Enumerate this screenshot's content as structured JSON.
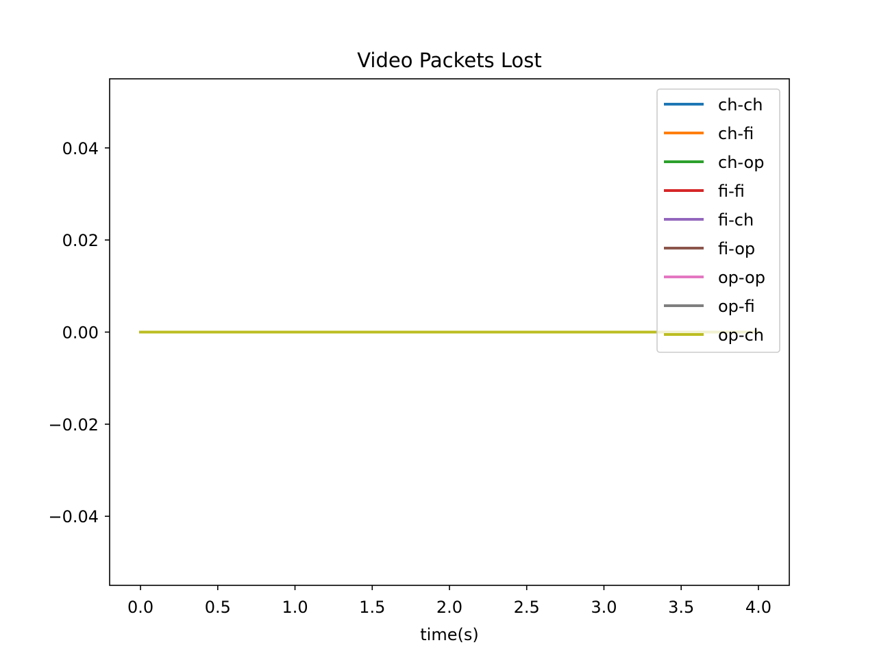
{
  "chart_data": {
    "type": "line",
    "title": "Video Packets Lost",
    "xlabel": "time(s)",
    "ylabel": "",
    "xlim": [
      -0.2,
      4.2
    ],
    "ylim": [
      -0.055,
      0.055
    ],
    "xticks": [
      0.0,
      0.5,
      1.0,
      1.5,
      2.0,
      2.5,
      3.0,
      3.5,
      4.0
    ],
    "xtick_labels": [
      "0.0",
      "0.5",
      "1.0",
      "1.5",
      "2.0",
      "2.5",
      "3.0",
      "3.5",
      "4.0"
    ],
    "yticks": [
      0.04,
      0.02,
      0.0,
      -0.02,
      -0.04
    ],
    "ytick_labels": [
      "0.04",
      "0.02",
      "0.00",
      "−0.02",
      "−0.04"
    ],
    "grid": false,
    "legend_position": "top-right",
    "series": [
      {
        "name": "ch-ch",
        "color": "#1f77b4",
        "x": [
          0.0,
          4.0
        ],
        "y": [
          0,
          0
        ]
      },
      {
        "name": "ch-fi",
        "color": "#ff7f0e",
        "x": [
          0.0,
          4.0
        ],
        "y": [
          0,
          0
        ]
      },
      {
        "name": "ch-op",
        "color": "#2ca02c",
        "x": [
          0.0,
          4.0
        ],
        "y": [
          0,
          0
        ]
      },
      {
        "name": "fi-fi",
        "color": "#d62728",
        "x": [
          0.0,
          4.0
        ],
        "y": [
          0,
          0
        ]
      },
      {
        "name": "fi-ch",
        "color": "#9467bd",
        "x": [
          0.0,
          4.0
        ],
        "y": [
          0,
          0
        ]
      },
      {
        "name": "fi-op",
        "color": "#8c564b",
        "x": [
          0.0,
          4.0
        ],
        "y": [
          0,
          0
        ]
      },
      {
        "name": "op-op",
        "color": "#e377c2",
        "x": [
          0.0,
          4.0
        ],
        "y": [
          0,
          0
        ]
      },
      {
        "name": "op-fi",
        "color": "#7f7f7f",
        "x": [
          0.0,
          4.0
        ],
        "y": [
          0,
          0
        ]
      },
      {
        "name": "op-ch",
        "color": "#bcbd22",
        "x": [
          0.0,
          4.0
        ],
        "y": [
          0,
          0
        ]
      }
    ]
  }
}
